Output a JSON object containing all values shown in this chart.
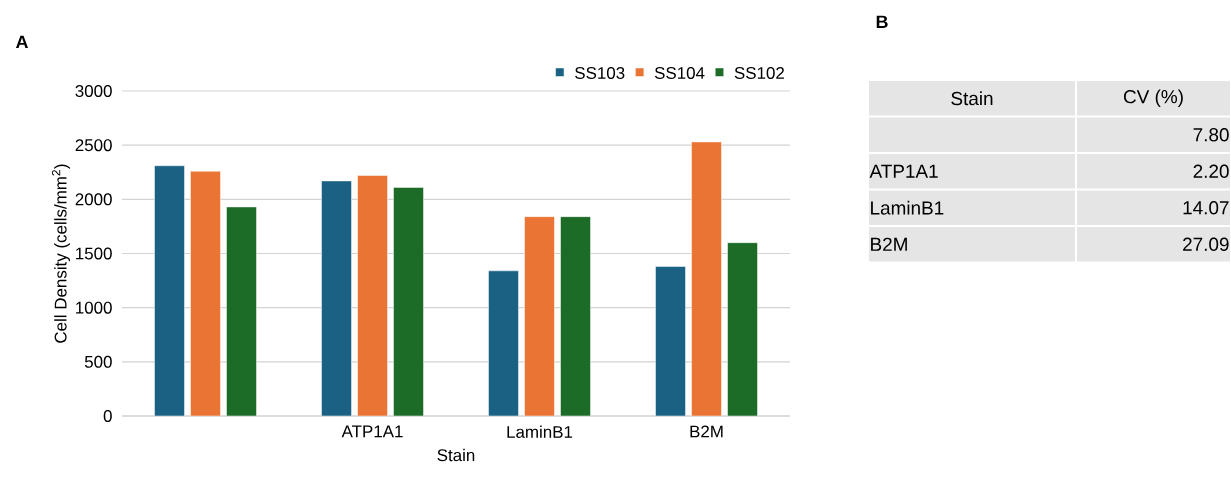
{
  "chart_data": [
    {
      "type": "bar",
      "title": "A",
      "xlabel": "Stain",
      "ylabel": "Cell Density (cells/mm$^{2}$)",
      "categories": [
        null,
        "ATP1A1",
        "LaminB1",
        "B2M"
      ],
      "series": [
        {
          "name": "SS103",
          "color": "#1a6184",
          "values": [
            2310,
            2170,
            1340,
            1380
          ]
        },
        {
          "name": "SS104",
          "color": "#e97434",
          "values": [
            2260,
            2220,
            1840,
            2530
          ]
        },
        {
          "name": "SS102",
          "color": "#1c6b27",
          "values": [
            1930,
            2110,
            1840,
            1600
          ]
        }
      ],
      "ylim": [
        0,
        3000
      ],
      "yticks": [
        0,
        500,
        1000,
        1500,
        2000,
        2500,
        3000
      ],
      "grid": "y",
      "legend": "top right"
    },
    {
      "type": "other",
      "title": "B",
      "xlabel": "Stain",
      "ylabel": "CV (%)",
      "categories": [
        null,
        "ATP1A1",
        "LaminB1",
        "B2M"
      ],
      "value_labels": [
        "7.80",
        "2.20",
        "14.07",
        "27.09"
      ]
    }
  ]
}
